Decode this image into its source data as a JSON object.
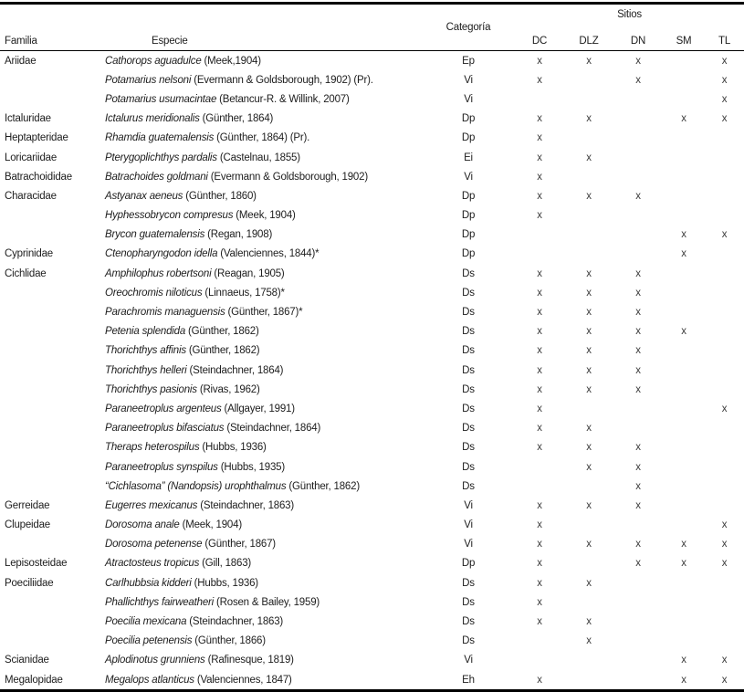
{
  "colors": {
    "background": "#ffffff",
    "text": "#1d1d1d",
    "rule": "#000000",
    "mark": "#3c3c3c"
  },
  "table": {
    "headers": {
      "familia": "Familia",
      "especie": "Especie",
      "categoria": "Categoría",
      "sitios": "Sitios",
      "site_codes": [
        "DC",
        "DLZ",
        "DN",
        "SM",
        "TL"
      ]
    },
    "mark_symbol": "x",
    "rows": [
      {
        "familia": "Ariidae",
        "especie": "Cathorops aguadulce",
        "autoridad": "(Meek,1904)",
        "categoria": "Ep",
        "sitios": [
          "x",
          "x",
          "x",
          "",
          "x"
        ]
      },
      {
        "familia": "",
        "especie": "Potamarius nelsoni",
        "autoridad": "(Evermann & Goldsborough, 1902) (Pr).",
        "categoria": "Vi",
        "sitios": [
          "x",
          "",
          "x",
          "",
          "x"
        ]
      },
      {
        "familia": "",
        "especie": "Potamarius usumacintae",
        "autoridad": "(Betancur-R. & Willink, 2007)",
        "categoria": "Vi",
        "sitios": [
          "",
          "",
          "",
          "",
          "x"
        ]
      },
      {
        "familia": "Ictaluridae",
        "especie": "Ictalurus meridionalis",
        "autoridad": "(Günther, 1864)",
        "categoria": "Dp",
        "sitios": [
          "x",
          "x",
          "",
          "x",
          "x"
        ]
      },
      {
        "familia": "Heptapteridae",
        "especie": "Rhamdia guatemalensis",
        "autoridad": "(Günther, 1864) (Pr).",
        "categoria": "Dp",
        "sitios": [
          "x",
          "",
          "",
          "",
          ""
        ]
      },
      {
        "familia": "Loricariidae",
        "especie": "Pterygoplichthys pardalis",
        "autoridad": "(Castelnau, 1855)",
        "categoria": "Ei",
        "sitios": [
          "x",
          "x",
          "",
          "",
          ""
        ]
      },
      {
        "familia": "Batrachoididae",
        "especie": "Batrachoides goldmani",
        "autoridad": "(Evermann & Goldsborough, 1902)",
        "categoria": "Vi",
        "sitios": [
          "x",
          "",
          "",
          "",
          ""
        ]
      },
      {
        "familia": "Characidae",
        "especie": "Astyanax aeneus",
        "autoridad": "(Günther, 1860)",
        "categoria": "Dp",
        "sitios": [
          "x",
          "x",
          "x",
          "",
          ""
        ]
      },
      {
        "familia": "",
        "especie": "Hyphessobrycon compresus",
        "autoridad": "(Meek, 1904)",
        "categoria": "Dp",
        "sitios": [
          "x",
          "",
          "",
          "",
          ""
        ]
      },
      {
        "familia": "",
        "especie": "Brycon guatemalensis",
        "autoridad": "(Regan, 1908)",
        "categoria": "Dp",
        "sitios": [
          "",
          "",
          "",
          "x",
          "x"
        ]
      },
      {
        "familia": "Cyprinidae",
        "especie": "Ctenopharyngodon idella",
        "autoridad": "(Valenciennes, 1844)*",
        "categoria": "Dp",
        "sitios": [
          "",
          "",
          "",
          "x",
          ""
        ]
      },
      {
        "familia": "Cichlidae",
        "especie": "Amphilophus robertsoni",
        "autoridad": "(Reagan, 1905)",
        "categoria": "Ds",
        "sitios": [
          "x",
          "x",
          "x",
          "",
          ""
        ]
      },
      {
        "familia": "",
        "especie": "Oreochromis niloticus",
        "autoridad": "(Linnaeus, 1758)*",
        "categoria": "Ds",
        "sitios": [
          "x",
          "x",
          "x",
          "",
          ""
        ]
      },
      {
        "familia": "",
        "especie": "Parachromis managuensis",
        "autoridad": "(Günther, 1867)*",
        "categoria": "Ds",
        "sitios": [
          "x",
          "x",
          "x",
          "",
          ""
        ]
      },
      {
        "familia": "",
        "especie": "Petenia splendida",
        "autoridad": "(Günther, 1862)",
        "categoria": "Ds",
        "sitios": [
          "x",
          "x",
          "x",
          "x",
          ""
        ]
      },
      {
        "familia": "",
        "especie": "Thorichthys affinis",
        "autoridad": "(Günther, 1862)",
        "categoria": "Ds",
        "sitios": [
          "x",
          "x",
          "x",
          "",
          ""
        ]
      },
      {
        "familia": "",
        "especie": "Thorichthys helleri",
        "autoridad": "(Steindachner, 1864)",
        "categoria": "Ds",
        "sitios": [
          "x",
          "x",
          "x",
          "",
          ""
        ]
      },
      {
        "familia": "",
        "especie": "Thorichthys pasionis",
        "autoridad": "(Rivas, 1962)",
        "categoria": "Ds",
        "sitios": [
          "x",
          "x",
          "x",
          "",
          ""
        ]
      },
      {
        "familia": "",
        "especie": "Paraneetroplus argenteus",
        "autoridad": "(Allgayer, 1991)",
        "categoria": "Ds",
        "sitios": [
          "x",
          "",
          "",
          "",
          "x"
        ]
      },
      {
        "familia": "",
        "especie": "Paraneetroplus bifasciatus",
        "autoridad": "(Steindachner, 1864)",
        "categoria": "Ds",
        "sitios": [
          "x",
          "x",
          "",
          "",
          ""
        ]
      },
      {
        "familia": "",
        "especie": "Theraps heterospilus",
        "autoridad": "(Hubbs, 1936)",
        "categoria": "Ds",
        "sitios": [
          "x",
          "x",
          "x",
          "",
          ""
        ]
      },
      {
        "familia": "",
        "especie": "Paraneetroplus synspilus",
        "autoridad": "(Hubbs, 1935)",
        "categoria": "Ds",
        "sitios": [
          "",
          "x",
          "x",
          "",
          ""
        ]
      },
      {
        "familia": "",
        "especie": "“Cichlasoma” (Nandopsis) urophthalmus",
        "autoridad": "(Günther, 1862)",
        "categoria": "Ds",
        "sitios": [
          "",
          "",
          "x",
          "",
          ""
        ]
      },
      {
        "familia": "Gerreidae",
        "especie": "Eugerres mexicanus",
        "autoridad": "(Steindachner, 1863)",
        "categoria": "Vi",
        "sitios": [
          "x",
          "x",
          "x",
          "",
          ""
        ]
      },
      {
        "familia": "Clupeidae",
        "especie": "Dorosoma anale",
        "autoridad": "(Meek, 1904)",
        "categoria": "Vi",
        "sitios": [
          "x",
          "",
          "",
          "",
          "x"
        ]
      },
      {
        "familia": "",
        "especie": "Dorosoma petenense",
        "autoridad": "(Günther, 1867)",
        "categoria": "Vi",
        "sitios": [
          "x",
          "x",
          "x",
          "x",
          "x"
        ]
      },
      {
        "familia": "Lepisosteidae",
        "especie": "Atractosteus tropicus",
        "autoridad": "(Gill, 1863)",
        "categoria": "Dp",
        "sitios": [
          "x",
          "",
          "x",
          "x",
          "x"
        ]
      },
      {
        "familia": "Poeciliidae",
        "especie": "Carlhubbsia kidderi",
        "autoridad": "(Hubbs, 1936)",
        "categoria": "Ds",
        "sitios": [
          "x",
          "x",
          "",
          "",
          ""
        ]
      },
      {
        "familia": "",
        "especie": "Phallichthys fairweatheri",
        "autoridad": "(Rosen & Bailey, 1959)",
        "categoria": "Ds",
        "sitios": [
          "x",
          "",
          "",
          "",
          ""
        ]
      },
      {
        "familia": "",
        "especie": "Poecilia mexicana",
        "autoridad": "(Steindachner, 1863)",
        "categoria": "Ds",
        "sitios": [
          "x",
          "x",
          "",
          "",
          ""
        ]
      },
      {
        "familia": "",
        "especie": "Poecilia petenensis",
        "autoridad": "(Günther, 1866)",
        "categoria": "Ds",
        "sitios": [
          "",
          "x",
          "",
          "",
          ""
        ]
      },
      {
        "familia": "Scianidae",
        "especie": "Aplodinotus grunniens",
        "autoridad": "(Rafinesque, 1819)",
        "categoria": "Vi",
        "sitios": [
          "",
          "",
          "",
          "x",
          "x"
        ]
      },
      {
        "familia": "Megalopidae",
        "especie": "Megalops atlanticus",
        "autoridad": "(Valenciennes, 1847)",
        "categoria": "Eh",
        "sitios": [
          "x",
          "",
          "",
          "x",
          "x"
        ]
      }
    ]
  }
}
